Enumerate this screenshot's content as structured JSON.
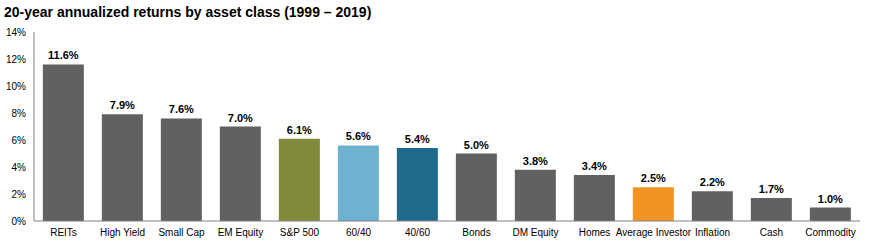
{
  "chart_data": {
    "type": "bar",
    "title": "20-year annualized returns by asset class (1999 – 2019)",
    "categories": [
      "REITs",
      "High Yield",
      "Small Cap",
      "EM Equity",
      "S&P 500",
      "60/40",
      "40/60",
      "Bonds",
      "DM Equity",
      "Homes",
      "Average Investor",
      "Inflation",
      "Cash",
      "Commodity"
    ],
    "values": [
      11.6,
      7.9,
      7.6,
      7.0,
      6.1,
      5.6,
      5.4,
      5.0,
      3.8,
      3.4,
      2.5,
      2.2,
      1.7,
      1.0
    ],
    "value_labels": [
      "11.6%",
      "7.9%",
      "7.6%",
      "7.0%",
      "6.1%",
      "5.6%",
      "5.4%",
      "5.0%",
      "3.8%",
      "3.4%",
      "2.5%",
      "2.2%",
      "1.7%",
      "1.0%"
    ],
    "colors": [
      "#616161",
      "#616161",
      "#616161",
      "#616161",
      "#808a3a",
      "#6eb2d0",
      "#1f6b8e",
      "#616161",
      "#616161",
      "#616161",
      "#f39323",
      "#616161",
      "#616161",
      "#616161"
    ],
    "ylim": [
      0,
      14
    ],
    "yticks": [
      {
        "value": 0,
        "label": "0%"
      },
      {
        "value": 2,
        "label": "2%"
      },
      {
        "value": 4,
        "label": "4%"
      },
      {
        "value": 6,
        "label": "6%"
      },
      {
        "value": 8,
        "label": "8%"
      },
      {
        "value": 10,
        "label": "10%"
      },
      {
        "value": 12,
        "label": "12%"
      },
      {
        "value": 14,
        "label": "14%"
      }
    ],
    "grid": false,
    "data_labels": true
  }
}
